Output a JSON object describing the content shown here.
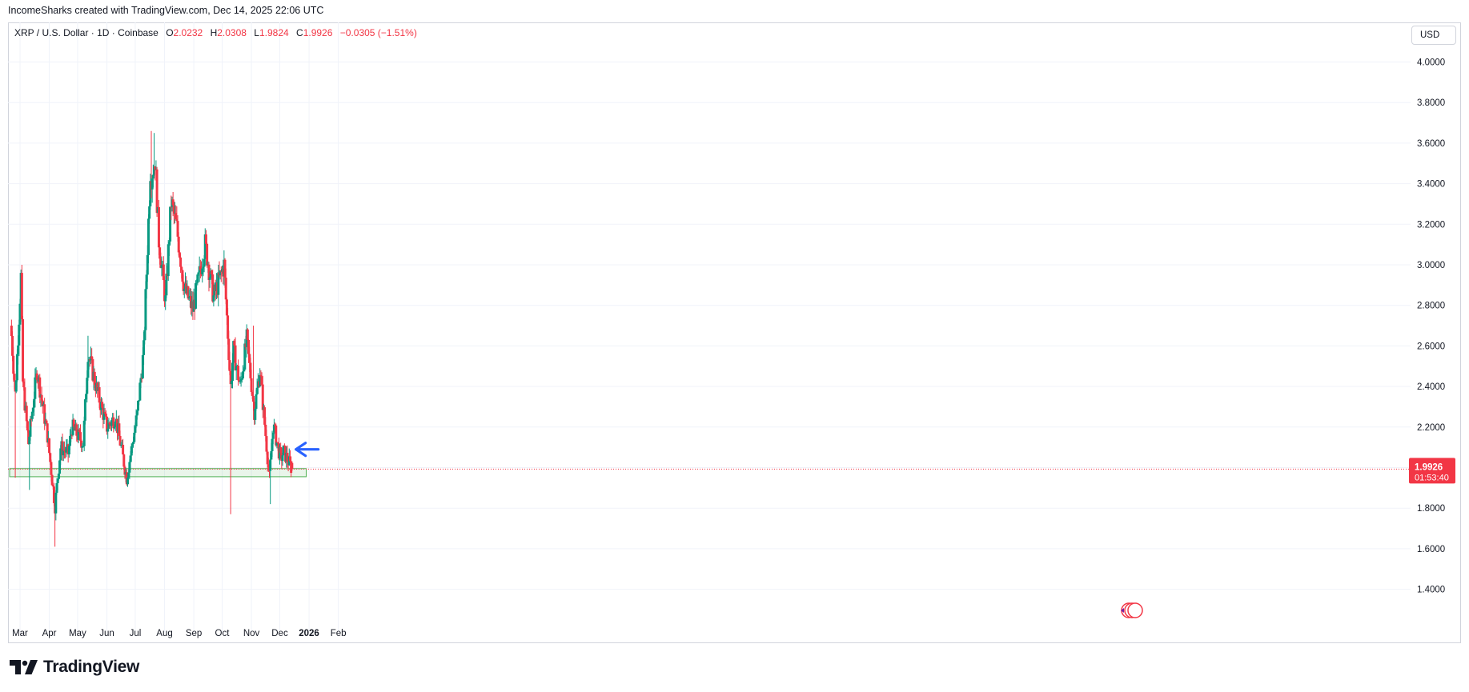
{
  "header": {
    "note": "IncomeSharks created with TradingView.com, Dec 14, 2025 22:06 UTC"
  },
  "legend": {
    "symbol": "XRP / U.S. Dollar · 1D · Coinbase",
    "o_label": "O",
    "o_value": "2.0232",
    "h_label": "H",
    "h_value": "2.0308",
    "l_label": "L",
    "l_value": "1.9824",
    "c_label": "C",
    "c_value": "1.9926",
    "change": "−0.0305 (−1.51%)"
  },
  "currency_button": "USD",
  "price_badge": {
    "price": "1.9926",
    "countdown": "01:53:40"
  },
  "brand": {
    "name": "TradingView"
  },
  "colors": {
    "up": "#089981",
    "down": "#f23645",
    "grid": "#f0f3fa",
    "zone": "#4caf50",
    "arrow": "#2962ff"
  },
  "icons": {
    "arrow": "arrow-left-icon",
    "events": "economic-events-icon"
  },
  "chart_data": {
    "type": "candlestick",
    "grid": true,
    "y_axis": {
      "ticks": [
        "4.0000",
        "3.8000",
        "3.6000",
        "3.4000",
        "3.2000",
        "3.0000",
        "2.8000",
        "2.6000",
        "2.4000",
        "2.2000",
        "2.0000",
        "1.8000",
        "1.6000",
        "1.4000"
      ],
      "tick_values": [
        4.0,
        3.8,
        3.6,
        3.4,
        3.2,
        3.0,
        2.8,
        2.6,
        2.4,
        2.2,
        2.0,
        1.8,
        1.6,
        1.4
      ],
      "range": [
        1.27,
        4.09
      ],
      "position": "right"
    },
    "x_axis": {
      "labels": [
        "Mar",
        "Apr",
        "May",
        "Jun",
        "Jul",
        "Aug",
        "Sep",
        "Oct",
        "Nov",
        "Dec",
        "2026",
        "Feb"
      ],
      "bold": [
        "2026"
      ]
    },
    "last_price": 1.9926,
    "support_zone": [
      1.955,
      1.995
    ],
    "segments": [
      [
        "2025-02-20",
        2.65
      ],
      [
        "2025-02-24",
        2.36
      ],
      [
        "2025-03-02",
        2.94
      ],
      [
        "2025-03-04",
        2.42
      ],
      [
        "2025-03-10",
        2.12
      ],
      [
        "2025-03-19",
        2.48
      ],
      [
        "2025-03-30",
        2.16
      ],
      [
        "2025-04-07",
        1.81
      ],
      [
        "2025-04-13",
        2.1
      ],
      [
        "2025-04-21",
        2.07
      ],
      [
        "2025-04-25",
        2.2
      ],
      [
        "2025-05-07",
        2.12
      ],
      [
        "2025-05-12",
        2.57
      ],
      [
        "2025-05-22",
        2.37
      ],
      [
        "2025-06-01",
        2.2
      ],
      [
        "2025-06-10",
        2.25
      ],
      [
        "2025-06-22",
        1.95
      ],
      [
        "2025-07-03",
        2.26
      ],
      [
        "2025-07-10",
        2.58
      ],
      [
        "2025-07-17",
        3.47
      ],
      [
        "2025-07-18",
        3.44
      ],
      [
        "2025-07-22",
        3.52
      ],
      [
        "2025-07-26",
        3.12
      ],
      [
        "2025-08-02",
        2.82
      ],
      [
        "2025-08-08",
        3.31
      ],
      [
        "2025-08-14",
        3.18
      ],
      [
        "2025-08-22",
        2.88
      ],
      [
        "2025-08-31",
        2.78
      ],
      [
        "2025-09-13",
        3.1
      ],
      [
        "2025-09-22",
        2.84
      ],
      [
        "2025-10-03",
        3.0
      ],
      [
        "2025-10-10",
        2.4
      ],
      [
        "2025-10-13",
        2.58
      ],
      [
        "2025-10-20",
        2.4
      ],
      [
        "2025-10-27",
        2.63
      ],
      [
        "2025-11-04",
        2.28
      ],
      [
        "2025-11-10",
        2.48
      ],
      [
        "2025-11-20",
        1.95
      ],
      [
        "2025-11-24",
        2.21
      ],
      [
        "2025-12-02",
        2.04
      ],
      [
        "2025-12-05",
        2.08
      ],
      [
        "2025-12-14",
        1.9926
      ]
    ],
    "wick_extremes": [
      {
        "date": "2025-02-24",
        "low": 1.95
      },
      {
        "date": "2025-03-03",
        "high": 3.0
      },
      {
        "date": "2025-03-11",
        "low": 1.89
      },
      {
        "date": "2025-04-07",
        "low": 1.61
      },
      {
        "date": "2025-05-12",
        "high": 2.65
      },
      {
        "date": "2025-06-22",
        "low": 1.91
      },
      {
        "date": "2025-07-18",
        "high": 3.66
      },
      {
        "date": "2025-07-21",
        "high": 3.65
      },
      {
        "date": "2025-09-13",
        "high": 3.18
      },
      {
        "date": "2025-10-10",
        "low": 1.77
      },
      {
        "date": "2025-11-03",
        "high": 2.7
      },
      {
        "date": "2025-11-21",
        "low": 1.82
      }
    ]
  }
}
